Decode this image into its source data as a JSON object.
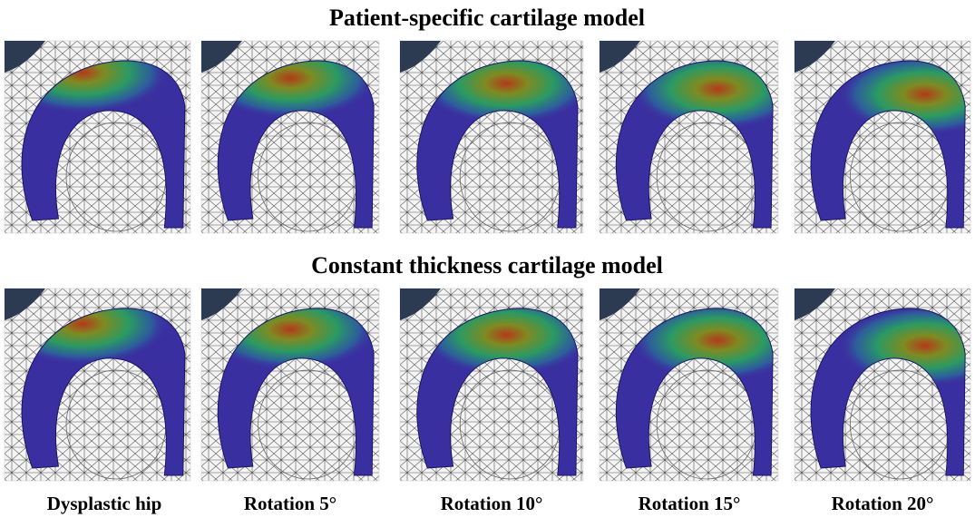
{
  "rows": [
    {
      "title": "Patient-specific cartilage model"
    },
    {
      "title": "Constant thickness cartilage model"
    }
  ],
  "columns": [
    "Dysplastic hip",
    "Rotation 5°",
    "Rotation 10°",
    "Rotation 15°",
    "Rotation 20°"
  ]
}
